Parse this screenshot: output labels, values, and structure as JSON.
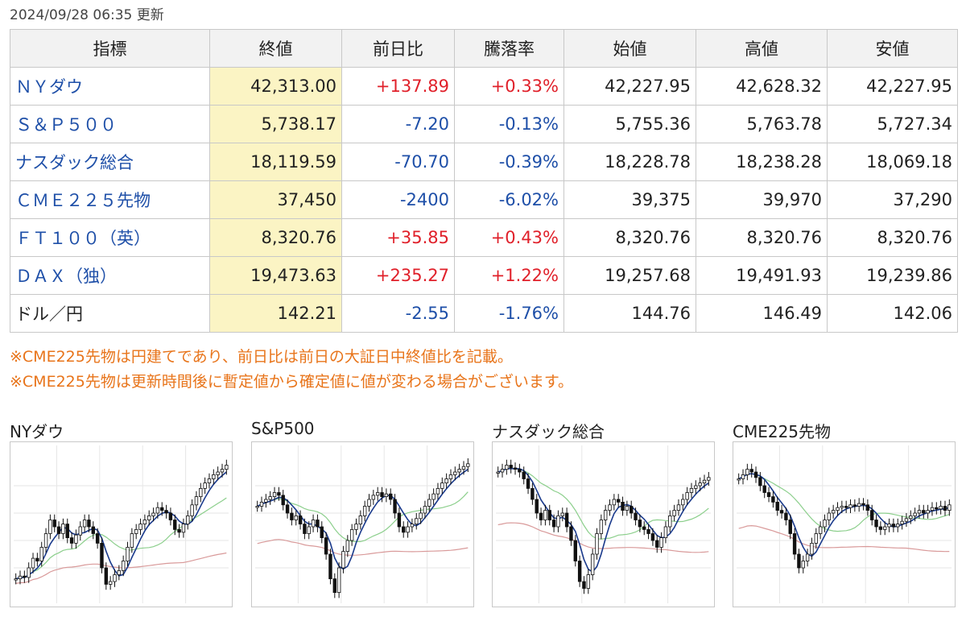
{
  "updated": "2024/09/28 06:35 更新",
  "table": {
    "headers": [
      "指標",
      "終値",
      "前日比",
      "騰落率",
      "始値",
      "高値",
      "安値"
    ],
    "rows": [
      {
        "name": "ＮＹダウ",
        "link": true,
        "close": "42,313.00",
        "change": "+137.89",
        "rate": "+0.33%",
        "open": "42,227.95",
        "high": "42,628.32",
        "low": "42,227.95",
        "dir": "up"
      },
      {
        "name": "Ｓ＆Ｐ５００",
        "link": true,
        "close": "5,738.17",
        "change": "-7.20",
        "rate": "-0.13%",
        "open": "5,755.36",
        "high": "5,763.78",
        "low": "5,727.34",
        "dir": "down"
      },
      {
        "name": "ナスダック総合",
        "link": true,
        "close": "18,119.59",
        "change": "-70.70",
        "rate": "-0.39%",
        "open": "18,228.78",
        "high": "18,238.28",
        "low": "18,069.18",
        "dir": "down"
      },
      {
        "name": "ＣＭＥ２２５先物",
        "link": true,
        "close": "37,450",
        "change": "-2400",
        "rate": "-6.02%",
        "open": "39,375",
        "high": "39,970",
        "low": "37,290",
        "dir": "down"
      },
      {
        "name": "ＦＴ１００（英）",
        "link": true,
        "close": "8,320.76",
        "change": "+35.85",
        "rate": "+0.43%",
        "open": "8,320.76",
        "high": "8,320.76",
        "low": "8,320.76",
        "dir": "up"
      },
      {
        "name": "ＤＡＸ（独）",
        "link": true,
        "close": "19,473.63",
        "change": "+235.27",
        "rate": "+1.22%",
        "open": "19,257.68",
        "high": "19,491.93",
        "low": "19,239.86",
        "dir": "up"
      },
      {
        "name": "ドル／円",
        "link": false,
        "close": "142.21",
        "change": "-2.55",
        "rate": "-1.76%",
        "open": "144.76",
        "high": "146.49",
        "low": "142.06",
        "dir": "down"
      }
    ]
  },
  "notes": [
    "※CME225先物は円建てであり、前日比は前日の大証日中終値比を記載。",
    "※CME225先物は更新時間後に暫定値から確定値に値が変わる場合がございます。"
  ],
  "charts": [
    {
      "title": "NYダウ",
      "closes": [
        0.12,
        0.14,
        0.13,
        0.2,
        0.27,
        0.25,
        0.35,
        0.45,
        0.55,
        0.5,
        0.45,
        0.52,
        0.42,
        0.38,
        0.44,
        0.5,
        0.55,
        0.5,
        0.45,
        0.38,
        0.2,
        0.08,
        0.1,
        0.15,
        0.18,
        0.25,
        0.35,
        0.45,
        0.48,
        0.52,
        0.55,
        0.58,
        0.6,
        0.64,
        0.62,
        0.6,
        0.55,
        0.48,
        0.46,
        0.52,
        0.58,
        0.66,
        0.72,
        0.78,
        0.82,
        0.85,
        0.88,
        0.9,
        0.92,
        0.95
      ]
    },
    {
      "title": "S&P500",
      "closes": [
        0.65,
        0.68,
        0.7,
        0.72,
        0.75,
        0.73,
        0.66,
        0.6,
        0.55,
        0.58,
        0.52,
        0.45,
        0.5,
        0.55,
        0.5,
        0.42,
        0.3,
        0.12,
        0.02,
        0.2,
        0.32,
        0.4,
        0.48,
        0.52,
        0.58,
        0.65,
        0.7,
        0.73,
        0.75,
        0.72,
        0.74,
        0.7,
        0.6,
        0.5,
        0.46,
        0.5,
        0.52,
        0.56,
        0.6,
        0.65,
        0.7,
        0.74,
        0.78,
        0.82,
        0.85,
        0.88,
        0.9,
        0.92,
        0.94,
        0.96
      ]
    },
    {
      "title": "ナスダック総合",
      "closes": [
        0.9,
        0.92,
        0.95,
        0.93,
        0.92,
        0.9,
        0.85,
        0.78,
        0.7,
        0.6,
        0.55,
        0.62,
        0.55,
        0.5,
        0.58,
        0.6,
        0.5,
        0.4,
        0.25,
        0.1,
        0.05,
        0.15,
        0.3,
        0.45,
        0.55,
        0.62,
        0.66,
        0.7,
        0.68,
        0.62,
        0.65,
        0.6,
        0.55,
        0.5,
        0.48,
        0.45,
        0.4,
        0.35,
        0.42,
        0.5,
        0.58,
        0.62,
        0.66,
        0.7,
        0.75,
        0.78,
        0.8,
        0.82,
        0.84,
        0.86
      ]
    },
    {
      "title": "CME225先物",
      "closes": [
        0.85,
        0.88,
        0.92,
        0.9,
        0.86,
        0.8,
        0.75,
        0.72,
        0.68,
        0.62,
        0.6,
        0.55,
        0.45,
        0.3,
        0.2,
        0.25,
        0.3,
        0.38,
        0.45,
        0.5,
        0.55,
        0.6,
        0.62,
        0.64,
        0.65,
        0.64,
        0.66,
        0.65,
        0.67,
        0.66,
        0.62,
        0.55,
        0.5,
        0.48,
        0.5,
        0.52,
        0.5,
        0.52,
        0.54,
        0.56,
        0.58,
        0.6,
        0.62,
        0.6,
        0.62,
        0.64,
        0.63,
        0.65,
        0.62,
        0.66
      ]
    }
  ]
}
